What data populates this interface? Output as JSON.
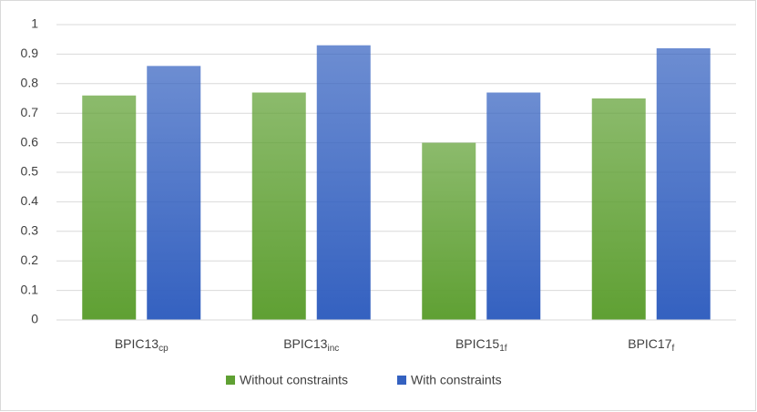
{
  "chart_data": {
    "type": "bar",
    "categories": [
      {
        "label": "BPIC13",
        "subscript": "cp"
      },
      {
        "label": "BPIC13",
        "subscript": "inc"
      },
      {
        "label": "BPIC15",
        "subscript": "1f"
      },
      {
        "label": "BPIC17",
        "subscript": "f"
      }
    ],
    "series": [
      {
        "name": "Without constraints",
        "color": "#5fa033",
        "values": [
          0.76,
          0.77,
          0.6,
          0.75
        ]
      },
      {
        "name": "With constraints",
        "color": "#3461c0",
        "values": [
          0.86,
          0.93,
          0.77,
          0.92
        ]
      }
    ],
    "ylim": [
      0,
      1
    ],
    "yticks": [
      0,
      0.1,
      0.2,
      0.3,
      0.4,
      0.5,
      0.6,
      0.7,
      0.8,
      0.9,
      1
    ],
    "grid": true,
    "legend": "bottom"
  }
}
